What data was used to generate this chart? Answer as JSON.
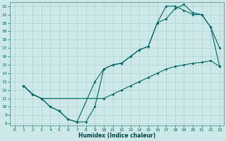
{
  "xlabel": "Humidex (Indice chaleur)",
  "bg_color": "#cce8e8",
  "line_color": "#006868",
  "grid_color": "#aacccc",
  "xlim_min": -0.5,
  "xlim_max": 23.5,
  "ylim_min": 7.8,
  "ylim_max": 22.5,
  "xticks": [
    0,
    1,
    2,
    3,
    4,
    5,
    6,
    7,
    8,
    9,
    10,
    11,
    12,
    13,
    14,
    15,
    16,
    17,
    18,
    19,
    20,
    21,
    22,
    23
  ],
  "yticks": [
    8,
    9,
    10,
    11,
    12,
    13,
    14,
    15,
    16,
    17,
    18,
    19,
    20,
    21,
    22
  ],
  "curve1_x": [
    1,
    2,
    3,
    4,
    5,
    6,
    7,
    8,
    9,
    10,
    11,
    12,
    13,
    14,
    15,
    16,
    17,
    18,
    19,
    20,
    21,
    22,
    23
  ],
  "curve1_y": [
    12.5,
    11.5,
    11.0,
    10.0,
    9.5,
    8.5,
    8.2,
    8.2,
    10.0,
    14.5,
    15.0,
    15.2,
    16.0,
    16.8,
    17.2,
    20.0,
    20.5,
    21.7,
    22.2,
    21.2,
    21.0,
    19.5,
    17.0
  ],
  "curve2_x": [
    1,
    2,
    3,
    4,
    5,
    6,
    7,
    9,
    10,
    11,
    12,
    13,
    14,
    15,
    16,
    17,
    18,
    19,
    20,
    21,
    22,
    23
  ],
  "curve2_y": [
    12.5,
    11.5,
    11.0,
    10.0,
    9.5,
    8.5,
    8.2,
    13.0,
    14.5,
    15.0,
    15.2,
    16.0,
    16.8,
    17.2,
    20.0,
    22.0,
    22.0,
    21.5,
    21.0,
    21.0,
    19.5,
    14.8
  ],
  "curve3_x": [
    1,
    2,
    3,
    10,
    11,
    12,
    13,
    14,
    15,
    16,
    17,
    18,
    19,
    20,
    21,
    22,
    23
  ],
  "curve3_y": [
    12.5,
    11.5,
    11.0,
    11.0,
    11.5,
    12.0,
    12.5,
    13.0,
    13.5,
    14.0,
    14.5,
    14.8,
    15.0,
    15.2,
    15.3,
    15.5,
    14.8
  ],
  "tick_fontsize": 4.5,
  "xlabel_fontsize": 5.5,
  "marker_size": 2.0,
  "line_width": 0.8
}
